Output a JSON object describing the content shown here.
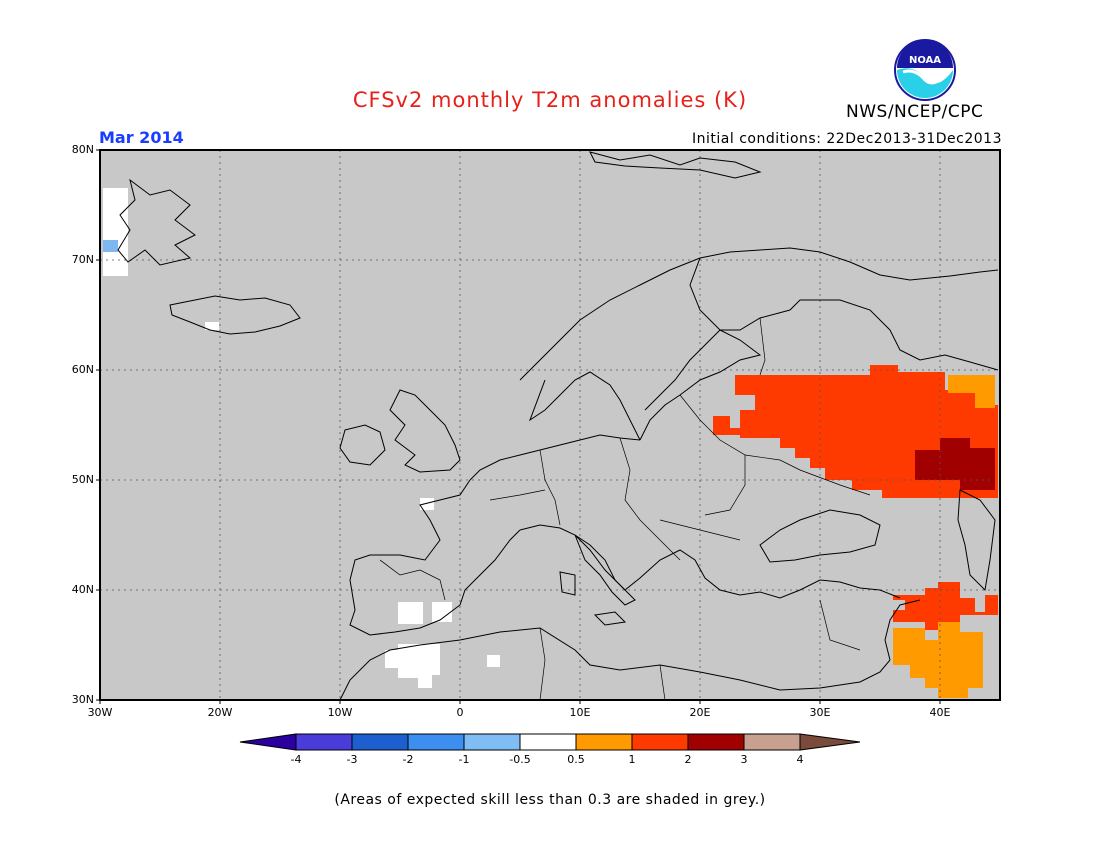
{
  "header": {
    "title": "CFSv2 monthly T2m anomalies (K)",
    "valid_month": "Mar 2014",
    "initial_conditions": "Initial conditions: 22Dec2013-31Dec2013",
    "agency": "NWS/NCEP/CPC",
    "logo_text": "NOAA"
  },
  "colors": {
    "title": "#e8201a",
    "month": "#1a3cff",
    "land_grey": "#c8c8c8",
    "frame": "#000000"
  },
  "map": {
    "lat_labels": [
      "80N",
      "70N",
      "60N",
      "50N",
      "40N",
      "30N"
    ],
    "lon_labels": [
      "30W",
      "20W",
      "10W",
      "0",
      "10E",
      "20E",
      "30E",
      "40E"
    ],
    "anomaly_regions": [
      {
        "name": "Western Russia / Belarus / Ukraine",
        "category": "1 to 2",
        "color": "#ff3a00"
      },
      {
        "name": "Southern Russia near Volga",
        "category": "2 to 3",
        "color": "#a00000"
      },
      {
        "name": "Northeast corner",
        "category": "0.5 to 1",
        "color": "#ff9a00"
      },
      {
        "name": "Turkey east / Caucasus",
        "category": "1 to 2",
        "color": "#ff3a00"
      },
      {
        "name": "Syria / Iraq",
        "category": "0.5 to 1",
        "color": "#ff9a00"
      },
      {
        "name": "Iberia / North Africa",
        "category": "-0.5 to 0.5",
        "color": "#ffffff"
      },
      {
        "name": "Greenland east coast",
        "category": "-1 to -0.5",
        "color": "#7fb8f0"
      }
    ]
  },
  "colorbar": {
    "labels": [
      "-4",
      "-3",
      "-2",
      "-1",
      "-0.5",
      "0.5",
      "1",
      "2",
      "3",
      "4"
    ],
    "colors": [
      "#2a00a0",
      "#4a3cd8",
      "#1e5fd0",
      "#3c8ef0",
      "#80bdf5",
      "#ffffff",
      "#ff9a00",
      "#ff3a00",
      "#a00000",
      "#c8a090",
      "#7a4a3a"
    ]
  },
  "footnote": "(Areas of expected skill less than 0.3 are shaded in grey.)"
}
